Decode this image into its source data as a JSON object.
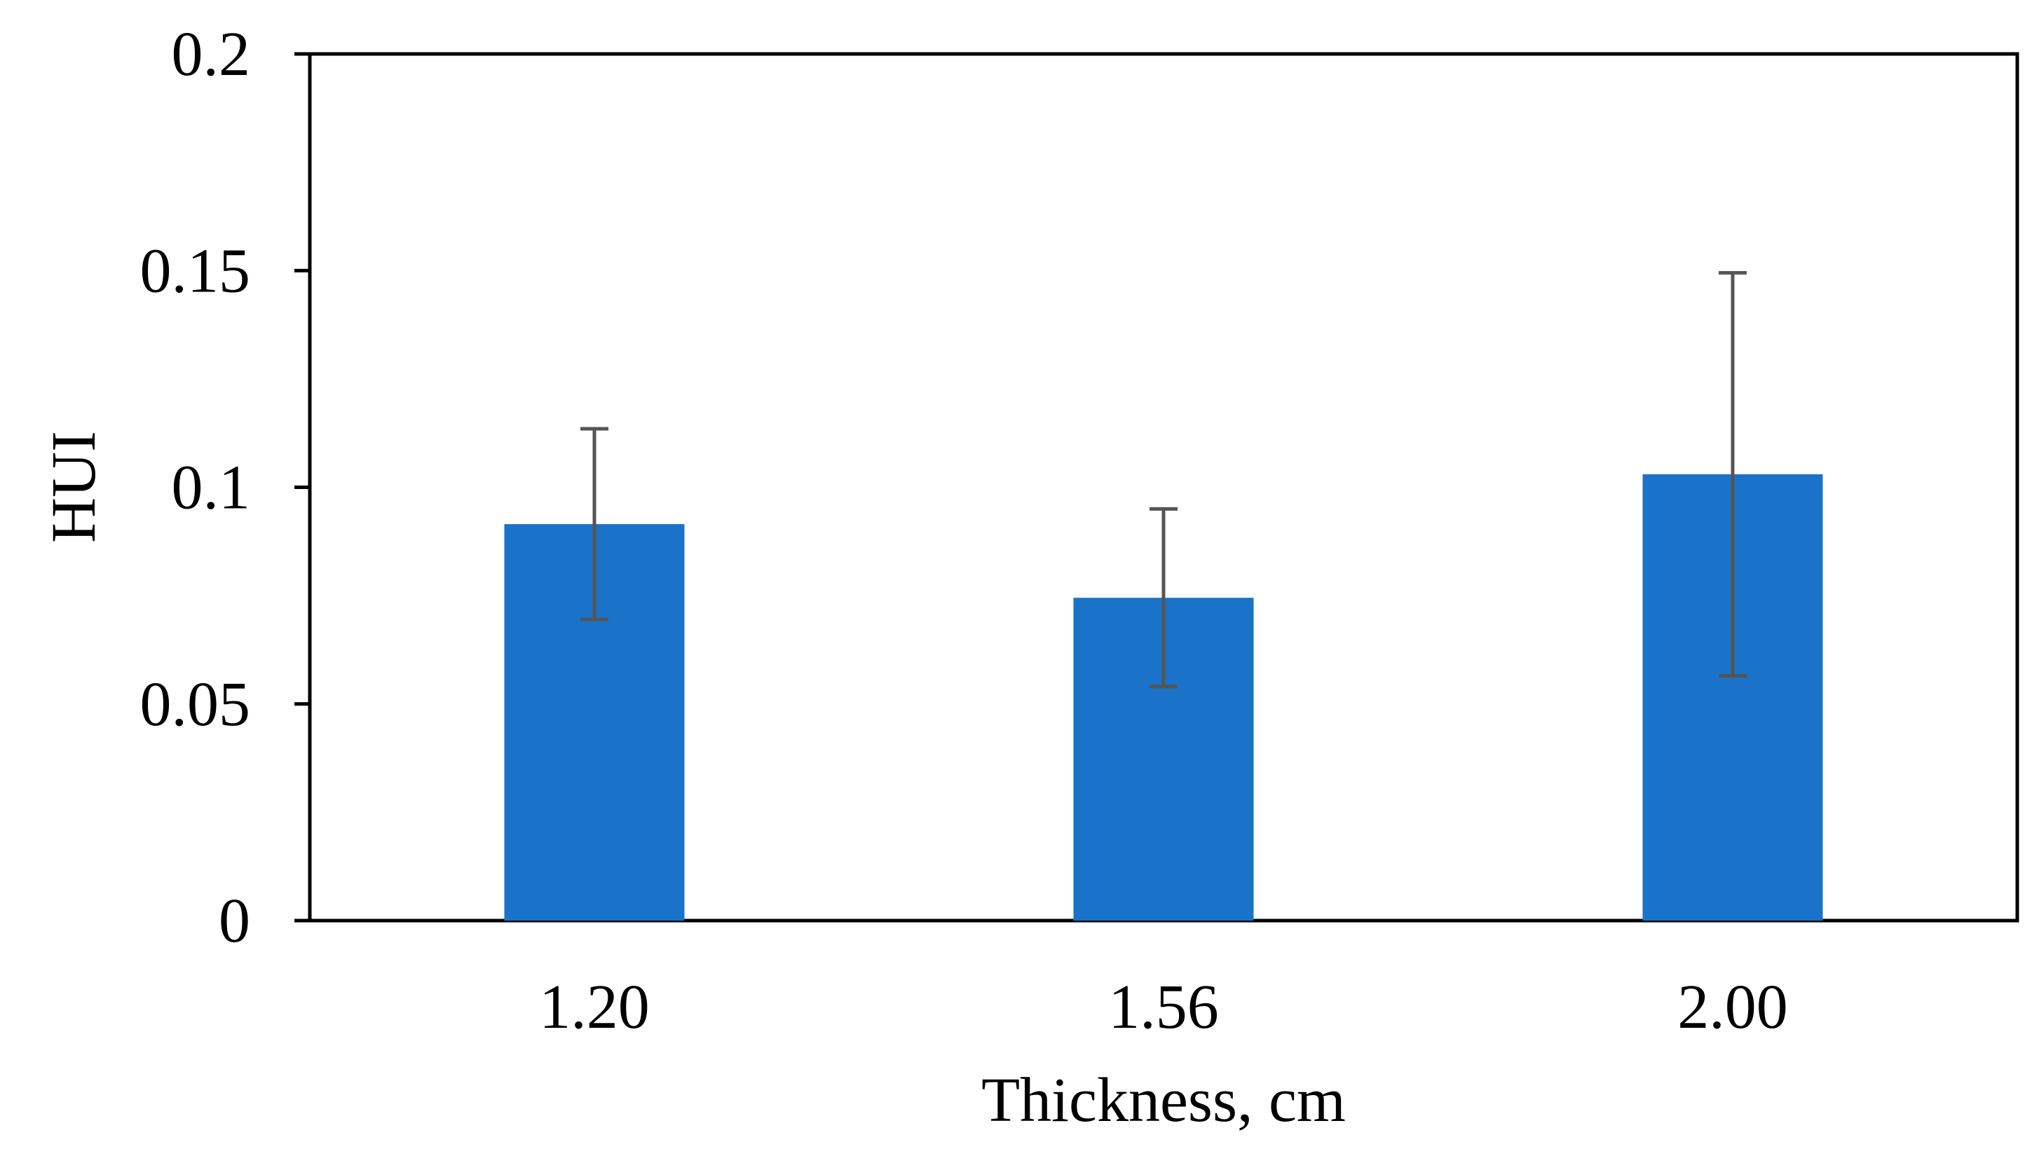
{
  "chart_data": {
    "type": "bar",
    "categories": [
      "1.20",
      "1.56",
      "2.00"
    ],
    "values": [
      0.0915,
      0.0745,
      0.103
    ],
    "error_bars": {
      "lower": [
        0.0695,
        0.054,
        0.0565
      ],
      "upper": [
        0.1135,
        0.095,
        0.1495
      ]
    },
    "title": "",
    "xlabel": "Thickness, cm",
    "ylabel": "HUI",
    "ylim": [
      0,
      0.2
    ],
    "yticks": [
      "0",
      "0.05",
      "0.1",
      "0.15",
      "0.2"
    ],
    "grid": false,
    "legend": "none"
  },
  "colors": {
    "bar": "#1a73c8",
    "error_bar": "#555555",
    "axis": "#000000"
  }
}
